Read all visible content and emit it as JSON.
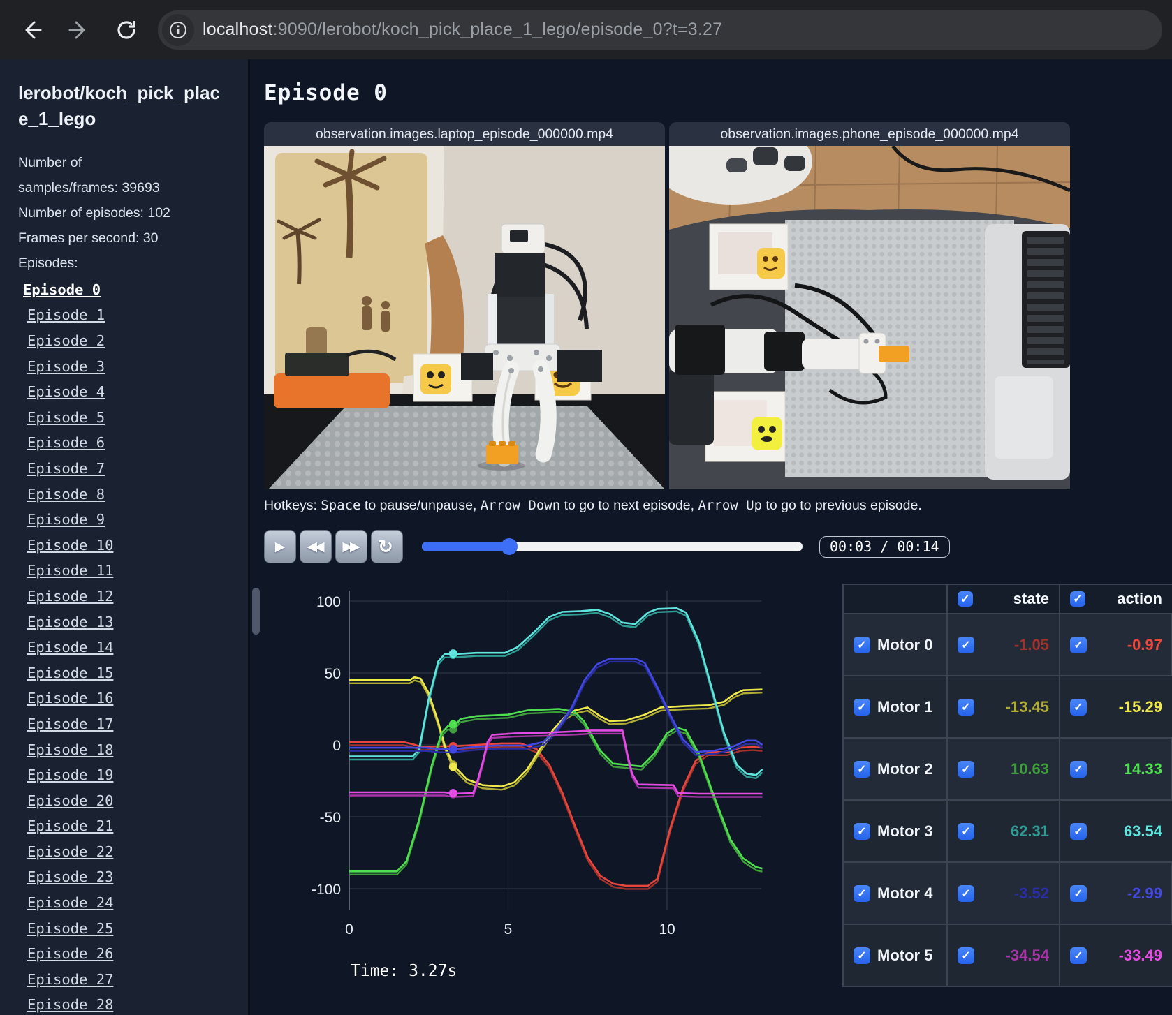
{
  "browser": {
    "url_host": "localhost",
    "url_rest": ":9090/lerobot/koch_pick_place_1_lego/episode_0?t=3.27"
  },
  "sidebar": {
    "title": "lerobot/koch_pick_place_1_lego",
    "info_lines": [
      "Number of",
      "samples/frames: 39693",
      "Number of episodes: 102",
      "Frames per second: 30",
      "Episodes:"
    ],
    "episodes": [
      "Episode 0",
      "Episode 1",
      "Episode 2",
      "Episode 3",
      "Episode 4",
      "Episode 5",
      "Episode 6",
      "Episode 7",
      "Episode 8",
      "Episode 9",
      "Episode 10",
      "Episode 11",
      "Episode 12",
      "Episode 13",
      "Episode 14",
      "Episode 15",
      "Episode 16",
      "Episode 17",
      "Episode 18",
      "Episode 19",
      "Episode 20",
      "Episode 21",
      "Episode 22",
      "Episode 23",
      "Episode 24",
      "Episode 25",
      "Episode 26",
      "Episode 27",
      "Episode 28"
    ],
    "active_episode": "Episode 0"
  },
  "main": {
    "title": "Episode 0",
    "videos": [
      {
        "title": "observation.images.laptop_episode_000000.mp4"
      },
      {
        "title": "observation.images.phone_episode_000000.mp4"
      }
    ],
    "hotkeys": [
      {
        "text": "Hotkeys: ",
        "mono": false
      },
      {
        "text": "Space",
        "mono": true
      },
      {
        "text": " to pause/unpause, ",
        "mono": false
      },
      {
        "text": "Arrow Down",
        "mono": true
      },
      {
        "text": " to go to next episode, ",
        "mono": false
      },
      {
        "text": "Arrow Up",
        "mono": true
      },
      {
        "text": " to go to previous episode.",
        "mono": false
      }
    ],
    "controls": {
      "buttons": [
        {
          "name": "play",
          "glyph": "▶",
          "single": true
        },
        {
          "name": "rewind",
          "glyph": "◀◀",
          "single": false
        },
        {
          "name": "fast-forward",
          "glyph": "▶▶",
          "single": false
        },
        {
          "name": "loop",
          "glyph": "↻",
          "single": true,
          "loop": true
        }
      ],
      "progress_pct": 23,
      "time_display": "00:03 / 00:14",
      "accent_color": "#3b6ef5"
    }
  },
  "table": {
    "state_header": "state",
    "action_header": "action",
    "rows": [
      {
        "name": "Motor 0",
        "state": "-1.05",
        "action": "-0.97",
        "state_color": "#a3322c",
        "action_color": "#ef453c"
      },
      {
        "name": "Motor 1",
        "state": "-13.45",
        "action": "-15.29",
        "state_color": "#b0ab31",
        "action_color": "#efe94c"
      },
      {
        "name": "Motor 2",
        "state": "10.63",
        "action": "14.33",
        "state_color": "#3f9e3b",
        "action_color": "#4fe04f"
      },
      {
        "name": "Motor 3",
        "state": "62.31",
        "action": "63.54",
        "state_color": "#2f9c94",
        "action_color": "#5ee6de"
      },
      {
        "name": "Motor 4",
        "state": "-3.52",
        "action": "-2.99",
        "state_color": "#2a2ea6",
        "action_color": "#4348e0"
      },
      {
        "name": "Motor 5",
        "state": "-34.54",
        "action": "-33.49",
        "state_color": "#a834a8",
        "action_color": "#e44ce4"
      }
    ]
  },
  "chart_data": {
    "type": "line",
    "title": "",
    "xlabel": "",
    "ylabel": "",
    "xlim": [
      0,
      13
    ],
    "ylim": [
      -100,
      100
    ],
    "xticks": [
      0,
      5,
      10
    ],
    "yticks": [
      100,
      50,
      0,
      -50,
      -100
    ],
    "grid": true,
    "legend_position": "none",
    "time_cursor": 3.27,
    "time_label": "Time: 3.27s",
    "series": [
      {
        "name": "Motor 0",
        "color_action": "#e8453c",
        "color_state": "#a3322c",
        "marker": {
          "t": 3.27,
          "state": -1.05,
          "action": -0.97
        },
        "points": [
          [
            0,
            2
          ],
          [
            1.7,
            2
          ],
          [
            2.0,
            0.5
          ],
          [
            2.3,
            -1.5
          ],
          [
            2.8,
            -1
          ],
          [
            3.27,
            -1
          ],
          [
            4.0,
            0
          ],
          [
            4.8,
            1
          ],
          [
            5.4,
            1
          ],
          [
            5.9,
            -3
          ],
          [
            6.3,
            -14
          ],
          [
            6.7,
            -33
          ],
          [
            7.1,
            -56
          ],
          [
            7.5,
            -78
          ],
          [
            7.9,
            -91
          ],
          [
            8.3,
            -96.5
          ],
          [
            8.7,
            -98
          ],
          [
            9.4,
            -98
          ],
          [
            9.7,
            -93
          ],
          [
            10.1,
            -58
          ],
          [
            10.5,
            -30
          ],
          [
            10.9,
            -11
          ],
          [
            11.3,
            -5
          ],
          [
            11.9,
            -5
          ],
          [
            12.3,
            -2
          ],
          [
            12.7,
            -1.5
          ],
          [
            13,
            -2
          ]
        ]
      },
      {
        "name": "Motor 1",
        "color_action": "#efe94c",
        "color_state": "#b0ab31",
        "marker": {
          "t": 3.27,
          "state": -13.45,
          "action": -15.29
        },
        "points": [
          [
            0,
            45
          ],
          [
            1.9,
            45
          ],
          [
            2.05,
            47
          ],
          [
            2.25,
            46
          ],
          [
            2.5,
            36
          ],
          [
            2.8,
            16
          ],
          [
            3.0,
            0
          ],
          [
            3.27,
            -14
          ],
          [
            3.7,
            -24
          ],
          [
            4.2,
            -28
          ],
          [
            4.8,
            -29
          ],
          [
            5.2,
            -26
          ],
          [
            5.6,
            -17
          ],
          [
            6.0,
            -3
          ],
          [
            6.4,
            10
          ],
          [
            6.8,
            20
          ],
          [
            7.1,
            24
          ],
          [
            7.5,
            26
          ],
          [
            7.9,
            20
          ],
          [
            8.2,
            16.5
          ],
          [
            8.7,
            17
          ],
          [
            9.3,
            21
          ],
          [
            9.8,
            26
          ],
          [
            10.6,
            27
          ],
          [
            11.3,
            27.5
          ],
          [
            11.8,
            30
          ],
          [
            12.1,
            35
          ],
          [
            12.4,
            38
          ],
          [
            13,
            38.5
          ]
        ]
      },
      {
        "name": "Motor 2",
        "color_action": "#4fe04f",
        "color_state": "#3f9e3b",
        "marker": {
          "t": 3.27,
          "state": 10.63,
          "action": 14.33
        },
        "points": [
          [
            0,
            -88
          ],
          [
            1.5,
            -88
          ],
          [
            1.8,
            -81
          ],
          [
            2.2,
            -52
          ],
          [
            2.6,
            -14
          ],
          [
            2.9,
            8
          ],
          [
            3.1,
            13
          ],
          [
            3.27,
            12
          ],
          [
            3.5,
            18
          ],
          [
            4.0,
            20
          ],
          [
            5.0,
            21
          ],
          [
            5.6,
            24
          ],
          [
            6.6,
            25
          ],
          [
            7.1,
            23
          ],
          [
            7.4,
            16
          ],
          [
            7.9,
            -4
          ],
          [
            8.3,
            -13
          ],
          [
            9.2,
            -15
          ],
          [
            9.6,
            -6
          ],
          [
            10.0,
            8
          ],
          [
            10.3,
            12
          ],
          [
            10.6,
            10
          ],
          [
            11.0,
            -6
          ],
          [
            11.5,
            -37
          ],
          [
            12.0,
            -66
          ],
          [
            12.4,
            -79
          ],
          [
            12.8,
            -85
          ],
          [
            13,
            -86
          ]
        ]
      },
      {
        "name": "Motor 3",
        "color_action": "#5ee6de",
        "color_state": "#2f9c94",
        "marker": {
          "t": 3.27,
          "state": 62.31,
          "action": 63.54
        },
        "points": [
          [
            0,
            -8
          ],
          [
            2.0,
            -8
          ],
          [
            2.2,
            -3
          ],
          [
            2.5,
            32
          ],
          [
            2.8,
            58
          ],
          [
            3.0,
            63
          ],
          [
            3.27,
            63
          ],
          [
            4.0,
            64
          ],
          [
            4.9,
            64
          ],
          [
            5.3,
            68
          ],
          [
            5.8,
            78
          ],
          [
            6.3,
            89
          ],
          [
            6.7,
            92.5
          ],
          [
            7.3,
            93
          ],
          [
            7.8,
            94
          ],
          [
            8.2,
            91
          ],
          [
            8.6,
            85
          ],
          [
            9.0,
            84
          ],
          [
            9.4,
            92
          ],
          [
            9.7,
            94.5
          ],
          [
            10.3,
            95
          ],
          [
            10.6,
            92
          ],
          [
            11.0,
            72
          ],
          [
            11.4,
            40
          ],
          [
            11.8,
            8
          ],
          [
            12.2,
            -14
          ],
          [
            12.5,
            -20
          ],
          [
            12.8,
            -21
          ],
          [
            13,
            -17
          ]
        ]
      },
      {
        "name": "Motor 4",
        "color_action": "#4348e0",
        "color_state": "#2a2ea6",
        "marker": {
          "t": 3.27,
          "state": -3.52,
          "action": -2.99
        },
        "points": [
          [
            0,
            -2
          ],
          [
            2.4,
            -2
          ],
          [
            2.9,
            -3
          ],
          [
            3.27,
            -3
          ],
          [
            3.9,
            -1.5
          ],
          [
            4.6,
            -0.5
          ],
          [
            5.6,
            -0.5
          ],
          [
            6.1,
            2
          ],
          [
            6.5,
            10
          ],
          [
            7.0,
            26
          ],
          [
            7.4,
            45
          ],
          [
            7.8,
            56
          ],
          [
            8.2,
            60
          ],
          [
            9.0,
            60
          ],
          [
            9.3,
            57
          ],
          [
            9.7,
            40
          ],
          [
            10.1,
            21
          ],
          [
            10.5,
            4
          ],
          [
            10.9,
            -5
          ],
          [
            11.5,
            -4
          ],
          [
            12.1,
            -1
          ],
          [
            12.5,
            3
          ],
          [
            12.8,
            3
          ],
          [
            13,
            0
          ]
        ]
      },
      {
        "name": "Motor 5",
        "color_action": "#e44ce4",
        "color_state": "#a834a8",
        "marker": {
          "t": 3.27,
          "state": -34.54,
          "action": -33.49
        },
        "points": [
          [
            0,
            -33
          ],
          [
            3.0,
            -33
          ],
          [
            3.27,
            -34
          ],
          [
            3.9,
            -33.5
          ],
          [
            4.05,
            -24
          ],
          [
            4.2,
            -12
          ],
          [
            4.35,
            2
          ],
          [
            4.5,
            7
          ],
          [
            5.2,
            8
          ],
          [
            6.2,
            8.5
          ],
          [
            7.2,
            9.5
          ],
          [
            7.6,
            10
          ],
          [
            8.6,
            10
          ],
          [
            8.75,
            -6
          ],
          [
            8.9,
            -20
          ],
          [
            9.1,
            -27.5
          ],
          [
            10.2,
            -28
          ],
          [
            10.35,
            -33.5
          ],
          [
            11.0,
            -34
          ],
          [
            13,
            -34
          ]
        ]
      }
    ]
  }
}
